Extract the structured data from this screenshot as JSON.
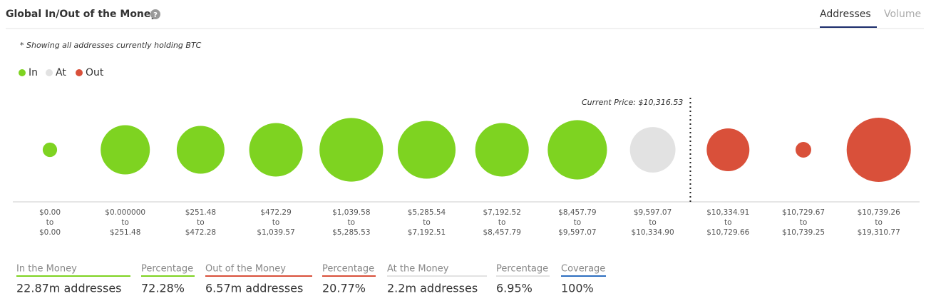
{
  "header": {
    "title": "Global In/Out of the Money",
    "tabs": [
      "Addresses",
      "Volume"
    ],
    "active_tab": 0
  },
  "note": "* Showing all addresses currently holding BTC",
  "chart_data": {
    "type": "bubble",
    "range_joiner": "to",
    "categories": [
      {
        "from": "$0.00",
        "to": "$0.00"
      },
      {
        "from": "$0.000000",
        "to": "$251.48"
      },
      {
        "from": "$251.48",
        "to": "$472.28"
      },
      {
        "from": "$472.29",
        "to": "$1,039.57"
      },
      {
        "from": "$1,039.58",
        "to": "$5,285.53"
      },
      {
        "from": "$5,285.54",
        "to": "$7,192.51"
      },
      {
        "from": "$7,192.52",
        "to": "$8,457.79"
      },
      {
        "from": "$8,457.79",
        "to": "$9,597.07"
      },
      {
        "from": "$9,597.07",
        "to": "$10,334.90"
      },
      {
        "from": "$10,334.91",
        "to": "$10,729.66"
      },
      {
        "from": "$10,729.67",
        "to": "$10,739.25"
      },
      {
        "from": "$10,739.26",
        "to": "$19,310.77"
      }
    ],
    "series": [
      {
        "name": "In",
        "color": "#7ed321",
        "values": [
          0.22,
          2.57,
          2.42,
          3.04,
          4.3,
          3.55,
          3.04,
          3.73,
          null,
          null,
          null,
          null
        ]
      },
      {
        "name": "At",
        "color": "#e2e2e2",
        "values": [
          null,
          null,
          null,
          null,
          null,
          null,
          null,
          null,
          2.2,
          null,
          null,
          null
        ]
      },
      {
        "name": "Out",
        "color": "#d9503a",
        "values": [
          null,
          null,
          null,
          null,
          null,
          null,
          null,
          null,
          null,
          1.94,
          0.26,
          4.37
        ]
      }
    ],
    "annotation": "Current Price: $10,316.53"
  },
  "summary": [
    {
      "label": "In the Money",
      "value": "22.87m addresses",
      "color": "#7ed321"
    },
    {
      "label": "Percentage",
      "value": "72.28%",
      "color": "#7ed321"
    },
    {
      "label": "Out of the Money",
      "value": "6.57m addresses",
      "color": "#d9503a"
    },
    {
      "label": "Percentage",
      "value": "20.77%",
      "color": "#d9503a"
    },
    {
      "label": "At the Money",
      "value": "2.2m addresses",
      "color": "#e2e2e2"
    },
    {
      "label": "Percentage",
      "value": "6.95%",
      "color": "#e2e2e2"
    },
    {
      "label": "Coverage",
      "value": "100%",
      "color": "#2d6fc0"
    }
  ]
}
